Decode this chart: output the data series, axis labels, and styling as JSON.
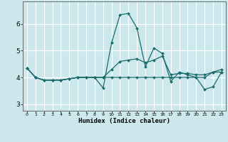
{
  "xlabel": "Humidex (Indice chaleur)",
  "background_color": "#cde8ec",
  "line_color": "#1a6b6b",
  "grid_color": "#ffffff",
  "xlim": [
    -0.5,
    23.5
  ],
  "ylim": [
    2.75,
    6.85
  ],
  "yticks": [
    3,
    4,
    5,
    6
  ],
  "xticks": [
    0,
    1,
    2,
    3,
    4,
    5,
    6,
    7,
    8,
    9,
    10,
    11,
    12,
    13,
    14,
    15,
    16,
    17,
    18,
    19,
    20,
    21,
    22,
    23
  ],
  "line1_x": [
    0,
    1,
    2,
    3,
    4,
    5,
    6,
    7,
    8,
    9,
    10,
    11,
    12,
    13,
    14,
    15,
    16,
    17,
    18,
    19,
    20,
    21,
    22,
    23
  ],
  "line1_y": [
    4.35,
    4.0,
    3.9,
    3.9,
    3.9,
    3.95,
    4.0,
    4.0,
    4.0,
    4.0,
    4.0,
    4.0,
    4.0,
    4.0,
    4.0,
    4.0,
    4.0,
    4.0,
    4.0,
    4.0,
    4.0,
    4.0,
    4.2,
    4.2
  ],
  "line2_x": [
    0,
    1,
    2,
    3,
    4,
    5,
    6,
    7,
    8,
    9,
    10,
    11,
    12,
    13,
    14,
    15,
    16,
    17,
    18,
    19,
    20,
    21,
    22,
    23
  ],
  "line2_y": [
    4.35,
    4.0,
    3.9,
    3.9,
    3.9,
    3.95,
    4.0,
    4.0,
    4.0,
    3.6,
    5.3,
    6.35,
    6.4,
    5.85,
    4.4,
    5.1,
    4.9,
    3.85,
    4.2,
    4.1,
    4.0,
    3.55,
    3.65,
    4.2
  ],
  "line3_x": [
    0,
    1,
    2,
    3,
    4,
    5,
    6,
    7,
    8,
    9,
    10,
    11,
    12,
    13,
    14,
    15,
    16,
    17,
    18,
    19,
    20,
    21,
    22,
    23
  ],
  "line3_y": [
    4.35,
    4.0,
    3.9,
    3.9,
    3.9,
    3.95,
    4.0,
    4.0,
    4.0,
    4.0,
    4.3,
    4.6,
    4.65,
    4.7,
    4.55,
    4.65,
    4.8,
    4.1,
    4.15,
    4.15,
    4.1,
    4.1,
    4.2,
    4.3
  ],
  "markersize": 2.0,
  "linewidth": 0.9
}
